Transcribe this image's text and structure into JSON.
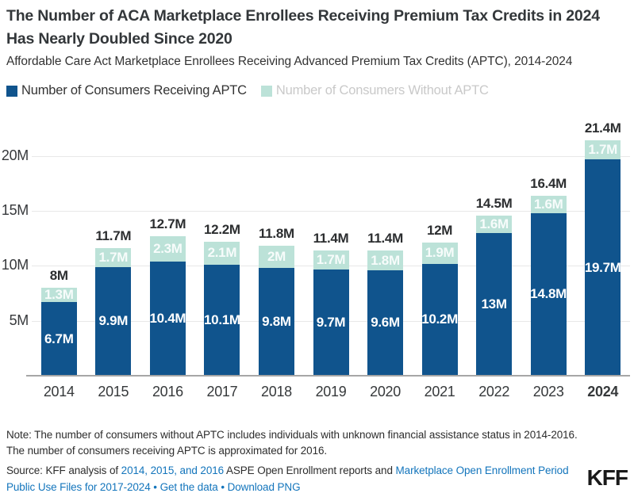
{
  "header": {
    "title_line1": "The Number of ACA Marketplace Enrollees Receiving Premium Tax Credits in 2024",
    "title_line2": "Has Nearly Doubled Since 2020",
    "subtitle": "Affordable Care Act Marketplace Enrollees Receiving Advanced Premium Tax Credits (APTC), 2014-2024"
  },
  "legend": [
    {
      "label": "Number of Consumers Receiving APTC",
      "swatch_color": "#10548d",
      "text_color": "#333333"
    },
    {
      "label": "Number of Consumers Without APTC",
      "swatch_color": "#bce2d8",
      "text_color": "#c9c9c9"
    }
  ],
  "chart_data": {
    "type": "bar",
    "stacked": true,
    "categories": [
      "2014",
      "2015",
      "2016",
      "2017",
      "2018",
      "2019",
      "2020",
      "2021",
      "2022",
      "2023",
      "2024"
    ],
    "series": [
      {
        "name": "Number of Consumers Receiving APTC",
        "color": "#10548d",
        "label_color": "#ffffff",
        "values": [
          6.7,
          9.9,
          10.4,
          10.1,
          9.8,
          9.7,
          9.6,
          10.2,
          13,
          14.8,
          19.7
        ],
        "labels": [
          "6.7M",
          "9.9M",
          "10.4M",
          "10.1M",
          "9.8M",
          "9.7M",
          "9.6M",
          "10.2M",
          "13M",
          "14.8M",
          "19.7M"
        ]
      },
      {
        "name": "Number of Consumers Without APTC",
        "color": "#bce2d8",
        "label_color": "rgba(255,255,255,0.88)",
        "values": [
          1.3,
          1.7,
          2.3,
          2.1,
          2.0,
          1.7,
          1.8,
          1.9,
          1.6,
          1.6,
          1.7
        ],
        "labels": [
          "1.3M",
          "1.7M",
          "2.3M",
          "2.1M",
          "2M",
          "1.7M",
          "1.8M",
          "1.9M",
          "1.6M",
          "1.6M",
          "1.7M"
        ]
      }
    ],
    "totals": [
      "8M",
      "11.7M",
      "12.7M",
      "12.2M",
      "11.8M",
      "11.4M",
      "11.4M",
      "12M",
      "14.5M",
      "16.4M",
      "21.4M"
    ],
    "title": "Affordable Care Act Marketplace Enrollees Receiving Advanced Premium Tax Credits (APTC), 2014-2024",
    "xlabel": "",
    "ylabel": "",
    "y_ticks": [
      "5M",
      "10M",
      "15M",
      "20M"
    ],
    "y_tick_values": [
      5,
      10,
      15,
      20
    ],
    "ylim": [
      0,
      22.5
    ],
    "grid": true,
    "legend_position": "top",
    "emphasized_category": "2024"
  },
  "footer": {
    "note_line1": "Note: The number of consumers without APTC includes individuals with unknown financial assistance status in 2014-2016.",
    "note_line2": "The number of consumers receiving APTC is approximated for 2016.",
    "source": {
      "prefix": "Source: KFF analysis of ",
      "link_reports": "2014, 2015, and 2016",
      "middle": " ASPE Open Enrollment reports and ",
      "link_puf": "Marketplace Open Enrollment Period Public Use Files for 2017-2024",
      "separator": "•",
      "link_get_data": "Get the data",
      "link_download": "Download PNG"
    },
    "logo": "KFF"
  },
  "colors": {
    "title": "#33373a",
    "link": "#1375bc",
    "gridline": "#e8e8e8",
    "axis_line": "#a6a6a6",
    "total_label": "#2c2e30"
  }
}
